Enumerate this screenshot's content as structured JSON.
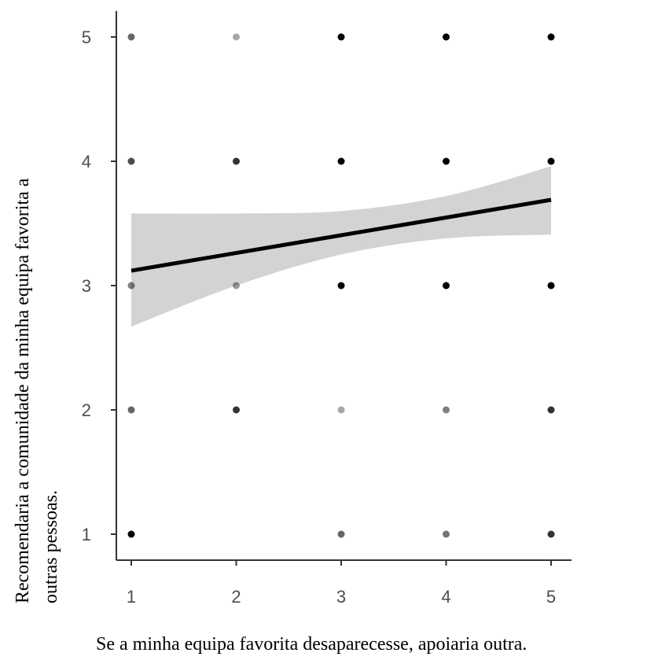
{
  "chart_data": {
    "type": "scatter",
    "title": "",
    "xlabel": "Se a minha equipa favorita desaparecesse, apoiaria outra.",
    "ylabel_lines": [
      "Recomendaria a comunidade da minha equipa favorita a",
      "outras pessoas."
    ],
    "xlim": [
      0.7,
      5.2
    ],
    "ylim": [
      0.8,
      5.2
    ],
    "xticks": [
      "1",
      "2",
      "3",
      "4",
      "5"
    ],
    "yticks": [
      "1",
      "2",
      "3",
      "4",
      "5"
    ],
    "grid": false,
    "legend": "none",
    "points": [
      {
        "x": 1,
        "y": 5,
        "opacity": 0.6
      },
      {
        "x": 1,
        "y": 4,
        "opacity": 0.7
      },
      {
        "x": 1,
        "y": 3,
        "opacity": 0.5
      },
      {
        "x": 1,
        "y": 2,
        "opacity": 0.6
      },
      {
        "x": 1,
        "y": 1,
        "opacity": 1.0
      },
      {
        "x": 2,
        "y": 5,
        "opacity": 0.35
      },
      {
        "x": 2,
        "y": 4,
        "opacity": 0.8
      },
      {
        "x": 2,
        "y": 3,
        "opacity": 0.4
      },
      {
        "x": 2,
        "y": 2,
        "opacity": 0.8
      },
      {
        "x": 3,
        "y": 5,
        "opacity": 1.0
      },
      {
        "x": 3,
        "y": 4,
        "opacity": 1.0
      },
      {
        "x": 3,
        "y": 3,
        "opacity": 1.0
      },
      {
        "x": 3,
        "y": 2,
        "opacity": 0.35
      },
      {
        "x": 3,
        "y": 1,
        "opacity": 0.6
      },
      {
        "x": 4,
        "y": 5,
        "opacity": 1.0
      },
      {
        "x": 4,
        "y": 4,
        "opacity": 1.0
      },
      {
        "x": 4,
        "y": 3,
        "opacity": 1.0
      },
      {
        "x": 4,
        "y": 2,
        "opacity": 0.5
      },
      {
        "x": 4,
        "y": 1,
        "opacity": 0.55
      },
      {
        "x": 5,
        "y": 5,
        "opacity": 1.0
      },
      {
        "x": 5,
        "y": 4,
        "opacity": 1.0
      },
      {
        "x": 5,
        "y": 3,
        "opacity": 1.0
      },
      {
        "x": 5,
        "y": 2,
        "opacity": 0.8
      },
      {
        "x": 5,
        "y": 1,
        "opacity": 0.8
      }
    ],
    "regression": {
      "x": [
        1,
        5
      ],
      "y": [
        3.12,
        3.69
      ],
      "ci_x": [
        1,
        2,
        3,
        4,
        5
      ],
      "ci_lower": [
        2.67,
        3.0,
        3.25,
        3.38,
        3.41
      ],
      "ci_upper": [
        3.58,
        3.58,
        3.6,
        3.72,
        3.96
      ]
    },
    "colors": {
      "point": "#000000",
      "line": "#000000",
      "band": "#d3d3d3",
      "axis": "#333333",
      "tick_label": "#4d4d4d"
    }
  }
}
